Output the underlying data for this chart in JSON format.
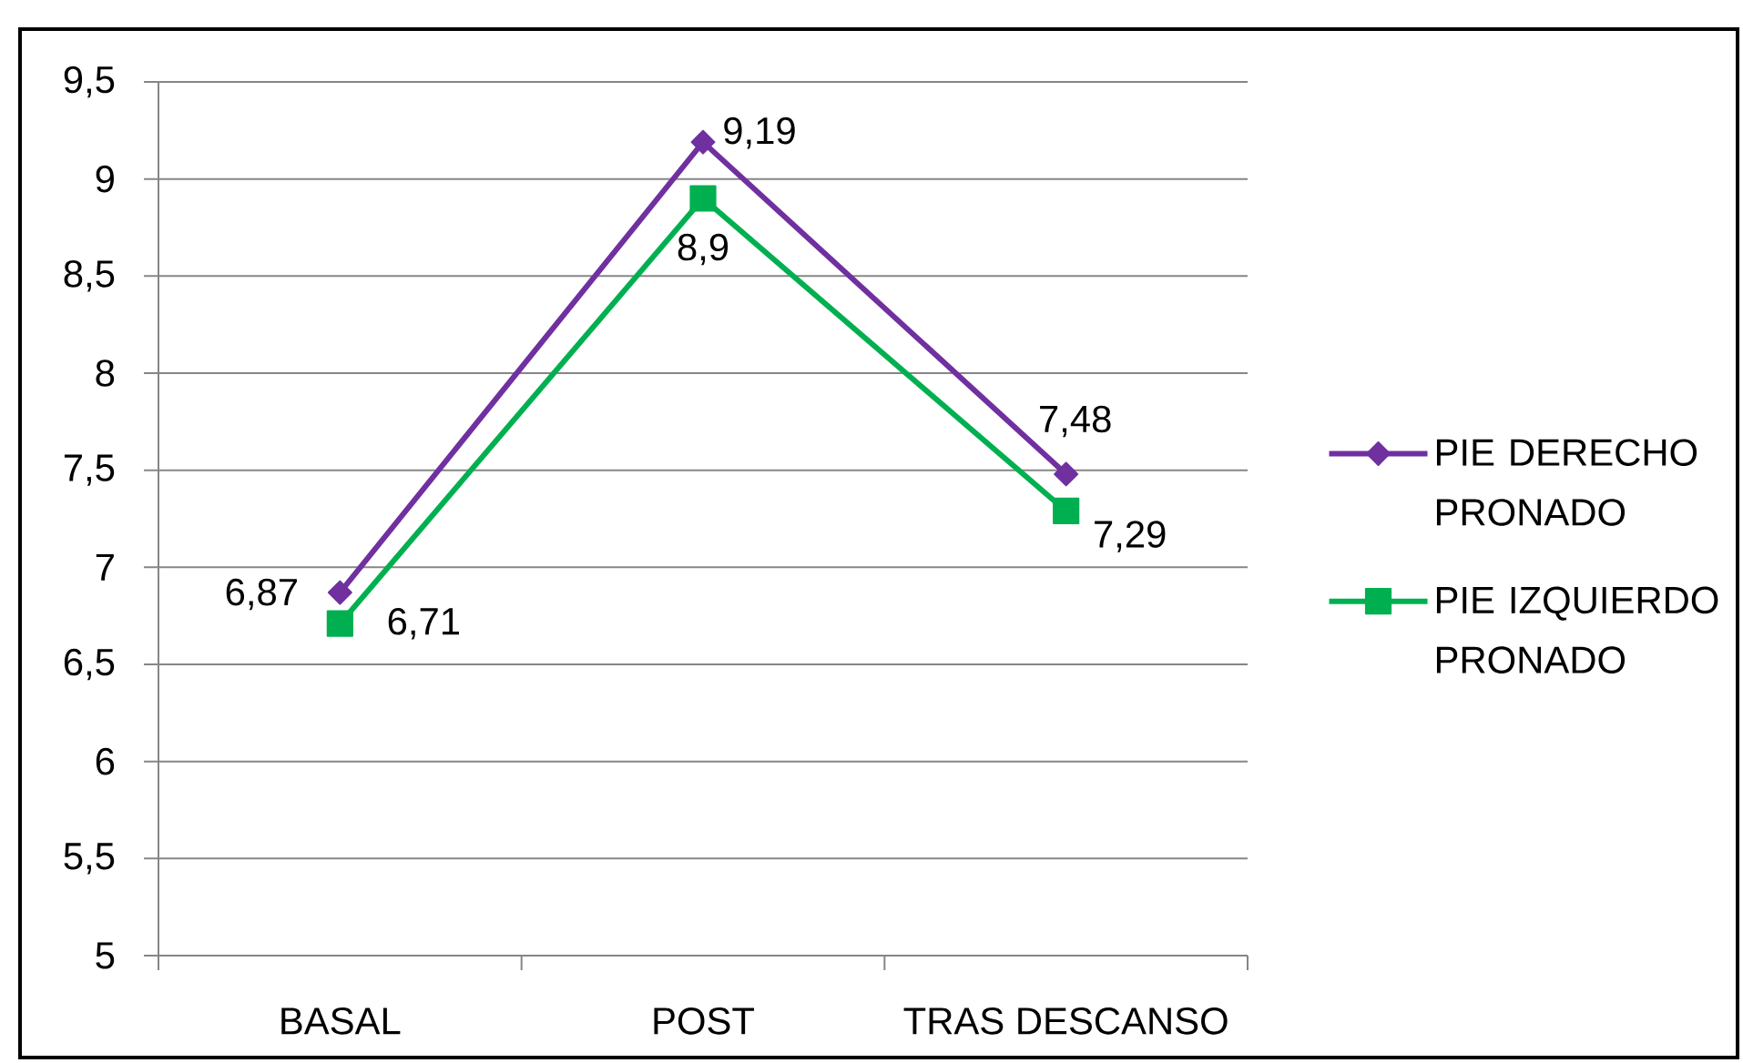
{
  "chart_data": {
    "type": "line",
    "categories": [
      "BASAL",
      "POST",
      "TRAS DESCANSO"
    ],
    "series": [
      {
        "name": "PIE DERECHO PRONADO",
        "color": "#7030a0",
        "marker": "diamond",
        "values": [
          6.87,
          9.19,
          7.48
        ],
        "value_labels": [
          "6,87",
          "9,19",
          "7,48"
        ]
      },
      {
        "name": "PIE IZQUIERDO PRONADO",
        "color": "#00b050",
        "marker": "square",
        "values": [
          6.71,
          8.9,
          7.29
        ],
        "value_labels": [
          "6,71",
          "8,9",
          "7,29"
        ]
      }
    ],
    "ylim": [
      5,
      9.5
    ],
    "yticks": [
      5,
      {
        "value": 5.5,
        "label": "5,5"
      },
      6,
      {
        "value": 6.5,
        "label": "6,5"
      },
      7,
      {
        "value": 7.5,
        "label": "7,5"
      },
      8,
      {
        "value": 8.5,
        "label": "8,5"
      },
      9,
      {
        "value": 9.5,
        "label": "9,5"
      }
    ],
    "grid": "y",
    "legend": "right",
    "line_style": "solid"
  }
}
